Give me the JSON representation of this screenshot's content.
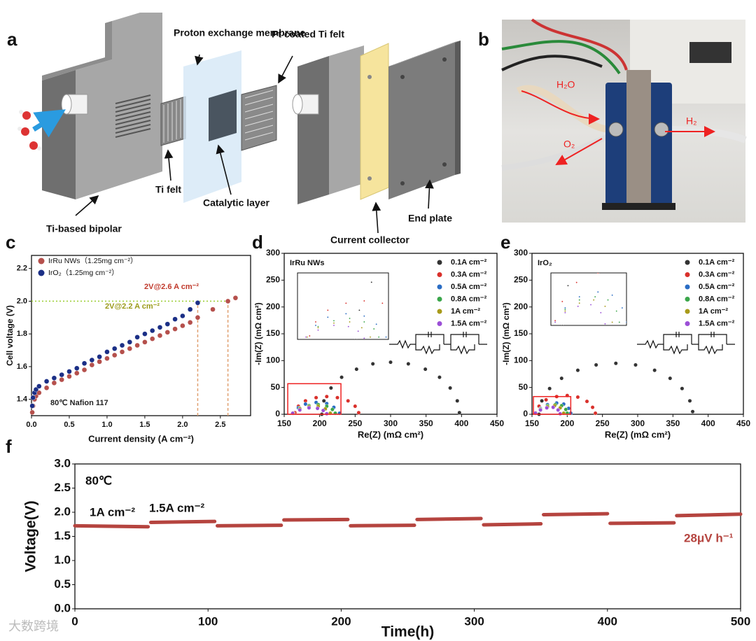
{
  "figure": {
    "panel_labels": [
      "a",
      "b",
      "c",
      "d",
      "e",
      "f"
    ],
    "diagram_a": {
      "labels": [
        "Proton exchange membrane",
        "Pt coated Ti felt",
        "Ti felt",
        "Catalytic layer",
        "Ti-based bipolar",
        "Current collector",
        "End plate"
      ]
    },
    "photo_b": {
      "labels": [
        "H₂O",
        "O₂",
        "H₂"
      ]
    },
    "watermark": "大数跨境"
  },
  "chart_data": [
    {
      "type": "scatter",
      "x_label": "Current density (A cm⁻²)",
      "y_label": "Cell voltage (V)",
      "xlim": [
        0,
        2.9
      ],
      "ylim": [
        1.3,
        2.28
      ],
      "xticks": [
        {
          "value": 0,
          "label": "0.0"
        },
        0.5,
        {
          "value": 1,
          "label": "1.0"
        },
        1.5,
        {
          "value": 2,
          "label": "2.0"
        },
        2.5
      ],
      "yticks": [
        1.4,
        1.6,
        1.8,
        {
          "value": 2,
          "label": "2.0"
        },
        2.2
      ],
      "ref_y": 2,
      "ref_x": [
        2.2,
        2.6
      ],
      "annotations": [
        "2V@2.6 A cm⁻²",
        "2V@2.2 A cm⁻²",
        "80℃ Nafion 117"
      ],
      "series": [
        {
          "name": "IrRu NWs（1.25mg cm⁻²）",
          "color": "#b5504c",
          "x": [
            0.01,
            0.02,
            0.04,
            0.06,
            0.1,
            0.2,
            0.3,
            0.4,
            0.5,
            0.6,
            0.7,
            0.8,
            0.9,
            1.0,
            1.1,
            1.2,
            1.3,
            1.4,
            1.5,
            1.6,
            1.7,
            1.8,
            1.9,
            2.0,
            2.1,
            2.2,
            2.4,
            2.6,
            2.7
          ],
          "values": [
            1.32,
            1.36,
            1.4,
            1.42,
            1.44,
            1.47,
            1.5,
            1.52,
            1.54,
            1.56,
            1.58,
            1.61,
            1.63,
            1.65,
            1.67,
            1.69,
            1.71,
            1.73,
            1.75,
            1.77,
            1.79,
            1.81,
            1.83,
            1.85,
            1.87,
            1.9,
            1.95,
            2.0,
            2.02
          ]
        },
        {
          "name": "IrO₂（1.25mg cm⁻²）",
          "color": "#1b2f86",
          "x": [
            0.01,
            0.02,
            0.04,
            0.06,
            0.1,
            0.2,
            0.3,
            0.4,
            0.5,
            0.6,
            0.7,
            0.8,
            0.9,
            1.0,
            1.1,
            1.2,
            1.3,
            1.4,
            1.5,
            1.6,
            1.7,
            1.8,
            1.9,
            2.0,
            2.1,
            2.2
          ],
          "values": [
            1.36,
            1.41,
            1.44,
            1.46,
            1.48,
            1.51,
            1.53,
            1.55,
            1.57,
            1.59,
            1.62,
            1.64,
            1.66,
            1.69,
            1.71,
            1.73,
            1.75,
            1.78,
            1.8,
            1.82,
            1.84,
            1.86,
            1.89,
            1.91,
            1.95,
            1.99
          ]
        }
      ]
    },
    {
      "type": "scatter",
      "title": "IrRu NWs",
      "x_label": "Re(Z) (mΩ cm²)",
      "y_label": "-Im(Z) (mΩ cm²)",
      "xlim": [
        150,
        450
      ],
      "ylim": [
        0,
        300
      ],
      "xticks": [
        150,
        200,
        250,
        300,
        350,
        400,
        450
      ],
      "yticks": [
        0,
        50,
        100,
        150,
        200,
        250,
        300
      ],
      "zoom_xlim": [
        155,
        230
      ],
      "zoom_ylim": [
        0,
        57
      ],
      "series": [
        {
          "name": "0.1A cm⁻²",
          "color": "#333333",
          "x": [
            203,
            206,
            216,
            231,
            252,
            275,
            300,
            325,
            349,
            369,
            384,
            394,
            397
          ],
          "values": [
            0,
            25,
            49,
            69,
            84,
            94,
            97,
            94,
            84,
            69,
            49,
            25,
            3
          ]
        },
        {
          "name": "0.3A cm⁻²",
          "color": "#d9302b",
          "x": [
            165,
            170,
            180,
            195,
            210,
            225,
            240,
            250,
            255
          ],
          "values": [
            3,
            15,
            25,
            31,
            33,
            31,
            25,
            15,
            3
          ]
        },
        {
          "name": "0.5A cm⁻²",
          "color": "#2a6dc4",
          "x": [
            163,
            170,
            180,
            195,
            210,
            220,
            228
          ],
          "values": [
            2,
            12,
            19,
            22,
            20,
            13,
            2
          ]
        },
        {
          "name": "0.8A cm⁻²",
          "color": "#3aa64a",
          "x": [
            163,
            172,
            185,
            198,
            210,
            218,
            222
          ],
          "values": [
            2,
            11,
            16,
            18,
            15,
            9,
            2
          ]
        },
        {
          "name": "1A cm⁻²",
          "color": "#a89a1a",
          "x": [
            163,
            172,
            185,
            198,
            208,
            215
          ],
          "values": [
            2,
            10,
            14,
            15,
            10,
            2
          ]
        },
        {
          "name": "1.5A cm⁻²",
          "color": "#9b4fd6",
          "x": [
            162,
            172,
            185,
            197,
            205,
            210
          ],
          "values": [
            2,
            8,
            12,
            11,
            7,
            1
          ]
        }
      ]
    },
    {
      "type": "scatter",
      "title": "IrO₂",
      "x_label": "Re(Z) (mΩ cm²)",
      "y_label": "-Im(Z) (mΩ cm²)",
      "xlim": [
        150,
        450
      ],
      "ylim": [
        0,
        300
      ],
      "xticks": [
        150,
        200,
        250,
        300,
        350,
        400,
        450
      ],
      "yticks": [
        0,
        50,
        100,
        150,
        200,
        250,
        300
      ],
      "zoom_xlim": [
        152,
        205
      ],
      "zoom_ylim": [
        0,
        33
      ],
      "series": [
        {
          "name": "0.1A cm⁻²",
          "color": "#333333",
          "x": [
            160,
            164,
            175,
            192,
            215,
            241,
            269,
            297,
            324,
            346,
            363,
            374,
            378
          ],
          "values": [
            0,
            25,
            48,
            67,
            82,
            92,
            95,
            92,
            82,
            67,
            48,
            25,
            5
          ]
        },
        {
          "name": "0.3A cm⁻²",
          "color": "#d9302b",
          "x": [
            155,
            160,
            170,
            185,
            200,
            215,
            228,
            236,
            240
          ],
          "values": [
            3,
            15,
            27,
            33,
            35,
            32,
            24,
            13,
            2
          ]
        },
        {
          "name": "0.5A cm⁻²",
          "color": "#2a6dc4",
          "x": [
            155,
            162,
            172,
            185,
            195,
            202,
            205
          ],
          "values": [
            2,
            11,
            18,
            21,
            19,
            11,
            2
          ]
        },
        {
          "name": "0.8A cm⁻²",
          "color": "#3aa64a",
          "x": [
            155,
            162,
            172,
            183,
            192,
            198,
            200
          ],
          "values": [
            2,
            10,
            16,
            18,
            16,
            9,
            2
          ]
        },
        {
          "name": "1A cm⁻²",
          "color": "#a89a1a",
          "x": [
            155,
            162,
            172,
            182,
            190,
            195
          ],
          "values": [
            2,
            9,
            14,
            16,
            12,
            2
          ]
        },
        {
          "name": "1.5A cm⁻²",
          "color": "#9b4fd6",
          "x": [
            155,
            162,
            171,
            180,
            187,
            190
          ],
          "values": [
            2,
            8,
            12,
            13,
            8,
            1
          ]
        }
      ]
    },
    {
      "type": "line",
      "x_label": "Time(h)",
      "y_label": "Voltage(V)",
      "xlim": [
        0,
        500
      ],
      "ylim": [
        0,
        3
      ],
      "xticks": [
        0,
        100,
        200,
        300,
        400,
        500
      ],
      "yticks": [
        {
          "value": 0,
          "label": "0.0"
        },
        0.5,
        {
          "value": 1,
          "label": "1.0"
        },
        1.5,
        {
          "value": 2,
          "label": "2.0"
        },
        2.5,
        {
          "value": 3,
          "label": "3.0"
        }
      ],
      "annotations": [
        "80℃",
        "1A cm⁻²",
        "1.5A cm⁻²",
        "28μV h⁻¹"
      ],
      "x": [
        0,
        55,
        56,
        57,
        105,
        106,
        107,
        155,
        156,
        157,
        205,
        206,
        207,
        255,
        256,
        257,
        305,
        306,
        307,
        350,
        351,
        352,
        400,
        401,
        402,
        450,
        451,
        452,
        500
      ],
      "series": [
        {
          "name": "Voltage",
          "color": "#b5443f",
          "values": [
            1.72,
            1.7,
            null,
            1.79,
            1.81,
            null,
            1.72,
            1.73,
            null,
            1.84,
            1.85,
            null,
            1.72,
            1.73,
            null,
            1.85,
            1.87,
            null,
            1.74,
            1.76,
            null,
            1.95,
            1.97,
            null,
            1.77,
            1.78,
            null,
            1.93,
            1.96
          ]
        }
      ]
    }
  ]
}
